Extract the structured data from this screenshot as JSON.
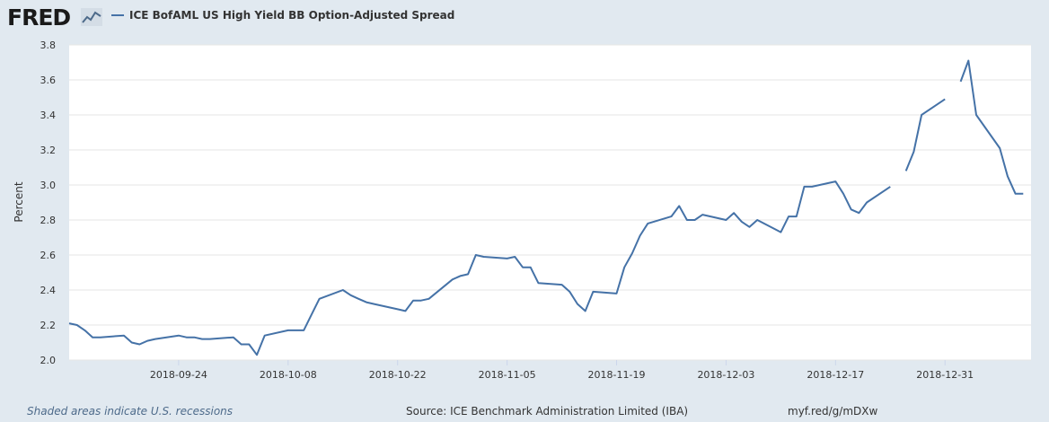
{
  "header": {
    "logo_text": "FRED",
    "logo_icon": "line-chart-icon",
    "legend_label": "ICE BofAML US High Yield BB Option-Adjusted Spread",
    "series_color": "#4572a7"
  },
  "footer": {
    "recession_note": "Shaded areas indicate U.S. recessions",
    "source": "Source: ICE Benchmark Administration Limited (IBA)",
    "short_url": "myf.red/g/mDXw"
  },
  "chart_data": {
    "type": "line",
    "title": "",
    "xlabel": "",
    "ylabel": "Percent",
    "ylim": [
      2.0,
      3.8
    ],
    "yticks": [
      2.0,
      2.2,
      2.4,
      2.6,
      2.8,
      3.0,
      3.2,
      3.4,
      3.6,
      3.8
    ],
    "xlim": [
      "2018-09-10",
      "2019-01-11"
    ],
    "xticks": [
      "2018-09-24",
      "2018-10-08",
      "2018-10-22",
      "2018-11-05",
      "2018-11-19",
      "2018-12-03",
      "2018-12-17",
      "2018-12-31"
    ],
    "grid": true,
    "series": [
      {
        "name": "ICE BofAML US High Yield BB Option-Adjusted Spread",
        "color": "#4572a7",
        "points": [
          [
            "2018-09-10",
            2.21
          ],
          [
            "2018-09-11",
            2.2
          ],
          [
            "2018-09-12",
            2.17
          ],
          [
            "2018-09-13",
            2.13
          ],
          [
            "2018-09-14",
            2.13
          ],
          [
            "2018-09-17",
            2.14
          ],
          [
            "2018-09-18",
            2.1
          ],
          [
            "2018-09-19",
            2.09
          ],
          [
            "2018-09-20",
            2.11
          ],
          [
            "2018-09-21",
            2.12
          ],
          [
            "2018-09-24",
            2.14
          ],
          [
            "2018-09-25",
            2.13
          ],
          [
            "2018-09-26",
            2.13
          ],
          [
            "2018-09-27",
            2.12
          ],
          [
            "2018-09-28",
            2.12
          ],
          [
            "2018-10-01",
            2.13
          ],
          [
            "2018-10-02",
            2.09
          ],
          [
            "2018-10-03",
            2.09
          ],
          [
            "2018-10-04",
            2.03
          ],
          [
            "2018-10-05",
            2.14
          ],
          [
            "2018-10-08",
            2.17
          ],
          [
            "2018-10-09",
            2.17
          ],
          [
            "2018-10-10",
            2.17
          ],
          [
            "2018-10-11",
            2.26
          ],
          [
            "2018-10-12",
            2.35
          ],
          [
            "2018-10-15",
            2.4
          ],
          [
            "2018-10-16",
            2.37
          ],
          [
            "2018-10-17",
            2.35
          ],
          [
            "2018-10-18",
            2.33
          ],
          [
            "2018-10-19",
            2.32
          ],
          [
            "2018-10-22",
            2.29
          ],
          [
            "2018-10-23",
            2.28
          ],
          [
            "2018-10-24",
            2.34
          ],
          [
            "2018-10-25",
            2.34
          ],
          [
            "2018-10-26",
            2.35
          ],
          [
            "2018-10-29",
            2.46
          ],
          [
            "2018-10-30",
            2.48
          ],
          [
            "2018-10-31",
            2.49
          ],
          [
            "2018-11-01",
            2.6
          ],
          [
            "2018-11-02",
            2.59
          ],
          [
            "2018-11-05",
            2.58
          ],
          [
            "2018-11-06",
            2.59
          ],
          [
            "2018-11-07",
            2.53
          ],
          [
            "2018-11-08",
            2.53
          ],
          [
            "2018-11-09",
            2.44
          ],
          [
            "2018-11-12",
            2.43
          ],
          [
            "2018-11-13",
            2.39
          ],
          [
            "2018-11-14",
            2.32
          ],
          [
            "2018-11-15",
            2.28
          ],
          [
            "2018-11-16",
            2.39
          ],
          [
            "2018-11-19",
            2.38
          ],
          [
            "2018-11-20",
            2.53
          ],
          [
            "2018-11-21",
            2.61
          ],
          [
            "2018-11-22",
            2.71
          ],
          [
            "2018-11-23",
            2.78
          ],
          [
            "2018-11-26",
            2.82
          ],
          [
            "2018-11-27",
            2.88
          ],
          [
            "2018-11-28",
            2.8
          ],
          [
            "2018-11-29",
            2.8
          ],
          [
            "2018-11-30",
            2.83
          ],
          [
            "2018-12-03",
            2.8
          ],
          [
            "2018-12-04",
            2.84
          ],
          [
            "2018-12-05",
            2.79
          ],
          [
            "2018-12-06",
            2.76
          ],
          [
            "2018-12-07",
            2.8
          ],
          [
            "2018-12-10",
            2.73
          ],
          [
            "2018-12-11",
            2.82
          ],
          [
            "2018-12-12",
            2.82
          ],
          [
            "2018-12-13",
            2.99
          ],
          [
            "2018-12-14",
            2.99
          ],
          [
            "2018-12-17",
            3.02
          ],
          [
            "2018-12-18",
            2.95
          ],
          [
            "2018-12-19",
            2.86
          ],
          [
            "2018-12-20",
            2.84
          ],
          [
            "2018-12-21",
            2.9
          ],
          [
            "2018-12-24",
            2.99
          ],
          [
            "2018-12-25",
            null
          ],
          [
            "2018-12-26",
            3.08
          ],
          [
            "2018-12-27",
            3.19
          ],
          [
            "2018-12-28",
            3.4
          ],
          [
            "2018-12-31",
            3.49
          ],
          [
            "2019-01-01",
            null
          ],
          [
            "2019-01-02",
            3.59
          ],
          [
            "2019-01-03",
            3.71
          ],
          [
            "2019-01-04",
            3.4
          ],
          [
            "2019-01-07",
            3.21
          ],
          [
            "2019-01-08",
            3.05
          ],
          [
            "2019-01-09",
            2.95
          ],
          [
            "2019-01-10",
            2.95
          ]
        ]
      }
    ]
  }
}
